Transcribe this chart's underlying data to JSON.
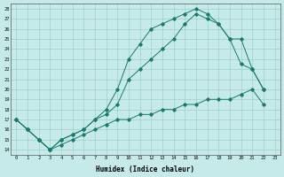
{
  "xlabel": "Humidex (Indice chaleur)",
  "bg_color": "#c5eae7",
  "grid_color": "#9dcfcb",
  "line_color": "#1a7a6e",
  "ylim": [
    14,
    28
  ],
  "xlim": [
    0,
    23
  ],
  "yticks": [
    14,
    15,
    16,
    17,
    18,
    19,
    20,
    21,
    22,
    23,
    24,
    25,
    26,
    27,
    28
  ],
  "xticks": [
    0,
    1,
    2,
    3,
    4,
    5,
    6,
    7,
    8,
    9,
    10,
    11,
    12,
    13,
    14,
    15,
    16,
    17,
    18,
    19,
    20,
    21,
    22,
    23
  ],
  "line1_x": [
    0,
    1,
    2,
    3,
    4,
    5,
    6,
    7,
    8,
    9,
    10,
    11,
    12,
    13,
    14,
    15,
    16,
    17,
    18,
    19,
    20,
    21,
    22
  ],
  "line1_y": [
    17,
    16,
    15,
    14,
    14.5,
    15,
    15.5,
    16,
    16.5,
    17,
    17,
    17.5,
    17.5,
    18,
    18,
    18.5,
    18.5,
    19,
    19,
    19,
    19.5,
    20,
    18.5
  ],
  "line2_x": [
    0,
    1,
    2,
    3,
    4,
    5,
    6,
    7,
    8,
    9,
    10,
    11,
    12,
    13,
    14,
    15,
    16,
    17,
    18,
    19,
    20,
    21,
    22
  ],
  "line2_y": [
    17,
    16,
    15,
    14,
    15,
    15.5,
    16,
    17,
    17.5,
    18.5,
    21,
    22,
    23,
    24,
    25,
    26.5,
    27.5,
    27,
    26.5,
    25,
    25,
    22,
    20
  ],
  "line3_x": [
    0,
    1,
    2,
    3,
    4,
    5,
    6,
    7,
    8,
    9,
    10,
    11,
    12,
    13,
    14,
    15,
    16,
    17,
    18,
    19,
    20,
    21,
    22
  ],
  "line3_y": [
    17,
    16,
    15,
    14,
    15,
    15.5,
    16,
    17,
    18,
    20,
    23,
    24.5,
    26,
    26.5,
    27,
    27.5,
    28,
    27.5,
    26.5,
    25,
    22.5,
    22,
    20
  ]
}
